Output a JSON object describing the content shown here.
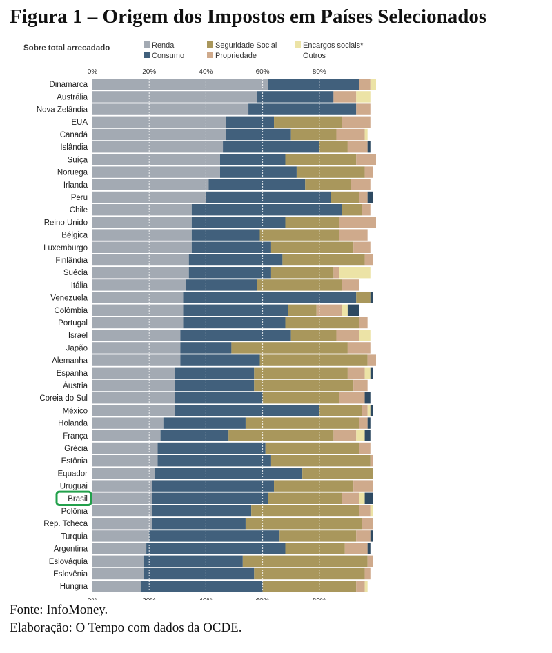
{
  "figure": {
    "title": "Figura 1 – Origem dos Impostos em Países Selecionados",
    "source": "Fonte: InfoMoney.",
    "credit": "Elaboração: O Tempo com dados da OCDE."
  },
  "colors": {
    "Renda": "#a3aab3",
    "Consumo": "#41607c",
    "Seguridade Social": "#a9975c",
    "Propriedade": "#cfaa8c",
    "Encargos sociais*": "#ece3a6",
    "Outros": "#2e4a62",
    "highlight": "#22a04b",
    "grid": "#ffffff"
  },
  "chart_data": {
    "type": "bar",
    "orientation": "horizontal",
    "stacked": true,
    "title": "Figura 1 – Origem dos Impostos em Países Selecionados",
    "ylabel": "Sobre total arrecadado",
    "xlim": [
      0,
      100
    ],
    "xticks": [
      "0%",
      "20%",
      "40%",
      "60%",
      "80%"
    ],
    "xtick_values": [
      0,
      20,
      40,
      60,
      80
    ],
    "legend": [
      "Renda",
      "Consumo",
      "Seguridade Social",
      "Propriedade",
      "Encargos sociais*",
      "Outros"
    ],
    "legend_position": "top",
    "highlight": "Brasil",
    "categories": [
      "Dinamarca",
      "Austrália",
      "Nova Zelândia",
      "EUA",
      "Canadá",
      "Islândia",
      "Suíça",
      "Noruega",
      "Irlanda",
      "Peru",
      "Chile",
      "Reino Unido",
      "Bélgica",
      "Luxemburgo",
      "Finlândia",
      "Suécia",
      "Itália",
      "Venezuela",
      "Colômbia",
      "Portugal",
      "Israel",
      "Japão",
      "Alemanha",
      "Espanha",
      "Áustria",
      "Coreia do Sul",
      "México",
      "Holanda",
      "França",
      "Grécia",
      "Estônia",
      "Equador",
      "Uruguai",
      "Brasil",
      "Polônia",
      "Rep. Tcheca",
      "Turquia",
      "Argentina",
      "Eslováquia",
      "Eslovênia",
      "Hungria"
    ],
    "series": [
      {
        "name": "Renda",
        "values": [
          62,
          58,
          55,
          47,
          47,
          46,
          45,
          45,
          41,
          40,
          35,
          35,
          35,
          35,
          34,
          34,
          33,
          32,
          32,
          32,
          31,
          31,
          31,
          29,
          29,
          29,
          29,
          25,
          24,
          23,
          23,
          22,
          21,
          21,
          21,
          21,
          20,
          19,
          18,
          18,
          17
        ]
      },
      {
        "name": "Consumo",
        "values": [
          32,
          27,
          38,
          17,
          23,
          34,
          23,
          27,
          34,
          44,
          53,
          33,
          24,
          28,
          33,
          29,
          25,
          61,
          37,
          36,
          39,
          18,
          28,
          28,
          28,
          31,
          51,
          29,
          24,
          38,
          40,
          52,
          43,
          41,
          35,
          33,
          46,
          49,
          35,
          39,
          43
        ]
      },
      {
        "name": "Seguridade Social",
        "values": [
          0,
          0,
          0,
          24,
          16,
          10,
          25,
          24,
          16,
          10,
          7,
          19,
          28,
          29,
          29,
          22,
          30,
          5,
          10,
          26,
          16,
          41,
          38,
          33,
          35,
          27,
          15,
          40,
          37,
          33,
          35,
          25,
          28,
          26,
          38,
          41,
          27,
          21,
          44,
          39,
          33
        ]
      },
      {
        "name": "Propriedade",
        "values": [
          4,
          8,
          5,
          10,
          10,
          7,
          7,
          3,
          7,
          3,
          3,
          13,
          10,
          6,
          3,
          2,
          6,
          0,
          9,
          3,
          8,
          8,
          3,
          6,
          5,
          9,
          2,
          3,
          8,
          4,
          1,
          0,
          7,
          6,
          4,
          4,
          5,
          8,
          2,
          2,
          3
        ]
      },
      {
        "name": "Encargos sociais*",
        "values": [
          2,
          5,
          0,
          0,
          1,
          0,
          0,
          0,
          0,
          0,
          0,
          0,
          0,
          0,
          0,
          11,
          0,
          0,
          2,
          0,
          4,
          0,
          0,
          2,
          0,
          0,
          1,
          0,
          3,
          0,
          0,
          0,
          0,
          2,
          1,
          0,
          0,
          0,
          0,
          0,
          1
        ]
      },
      {
        "name": "Outros",
        "values": [
          0,
          0,
          0,
          0,
          0,
          1,
          0,
          0,
          0,
          2,
          0,
          0,
          0,
          0,
          0,
          0,
          0,
          1,
          4,
          0,
          0,
          0,
          0,
          1,
          0,
          2,
          1,
          1,
          2,
          0,
          0,
          0,
          0,
          3,
          0,
          0,
          1,
          1,
          0,
          0,
          0
        ]
      }
    ]
  }
}
